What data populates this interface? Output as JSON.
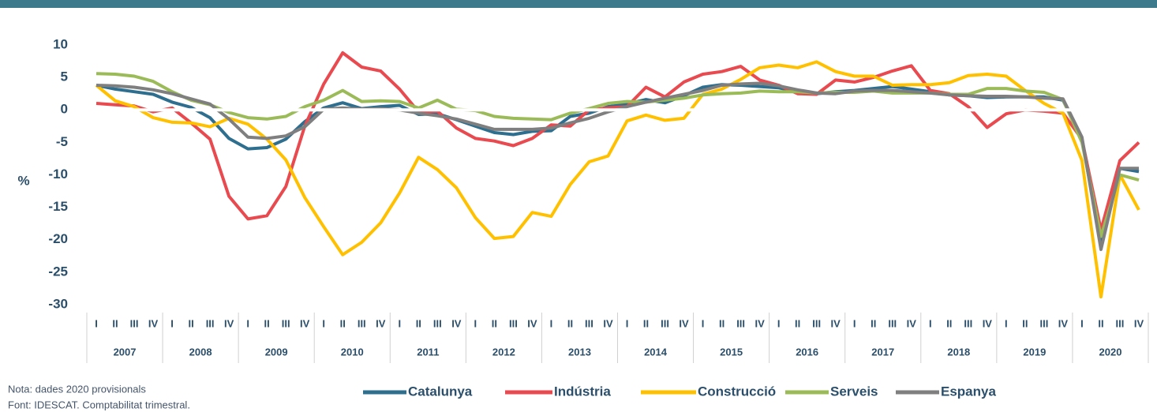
{
  "chart_data": {
    "type": "line",
    "y_label": "%",
    "categories": [
      "I",
      "II",
      "III",
      "IV",
      "I",
      "II",
      "III",
      "IV",
      "I",
      "II",
      "III",
      "IV",
      "I",
      "II",
      "III",
      "IV",
      "I",
      "II",
      "III",
      "IV",
      "I",
      "II",
      "III",
      "IV",
      "I",
      "II",
      "III",
      "IV",
      "I",
      "II",
      "III",
      "IV",
      "I",
      "II",
      "III",
      "IV",
      "I",
      "II",
      "III",
      "IV",
      "I",
      "II",
      "III",
      "IV",
      "I",
      "II",
      "III",
      "IV",
      "I",
      "II",
      "III",
      "IV",
      "I",
      "II",
      "III",
      "IV"
    ],
    "years": [
      "2007",
      "2008",
      "2009",
      "2010",
      "2011",
      "2012",
      "2013",
      "2014",
      "2015",
      "2016",
      "2017",
      "2018",
      "2019",
      "2020"
    ],
    "ylim": [
      -30,
      10
    ],
    "yticks": [
      10,
      5,
      0,
      -5,
      -10,
      -15,
      -20,
      -25,
      -30
    ],
    "zero_line": true,
    "series": [
      {
        "name": "Catalunya",
        "color": "#2e6e8e",
        "values": [
          3.8,
          3.2,
          2.8,
          2.4,
          1.2,
          0.4,
          -1.2,
          -4.4,
          -6.0,
          -5.8,
          -4.5,
          -1.8,
          0.3,
          1.1,
          0.2,
          0.5,
          0.7,
          -0.7,
          -0.6,
          -1.5,
          -2.5,
          -3.5,
          -3.8,
          -3.3,
          -3.2,
          -1.0,
          -0.5,
          0.5,
          0.9,
          1.6,
          1.1,
          2.2,
          3.5,
          3.9,
          3.8,
          3.6,
          3.4,
          2.8,
          2.5,
          2.8,
          3.0,
          3.3,
          3.6,
          3.2,
          2.8,
          2.3,
          2.2,
          1.9,
          2.0,
          2.0,
          2.0,
          1.5,
          -4.5,
          -20.5,
          -9.0,
          -9.5
        ]
      },
      {
        "name": "Indústria",
        "color": "#e84a4f",
        "values": [
          1.0,
          0.8,
          0.6,
          -0.3,
          0.3,
          -2.0,
          -4.5,
          -13.3,
          -16.8,
          -16.3,
          -11.8,
          -2.5,
          4.0,
          8.8,
          6.6,
          6.0,
          3.2,
          -0.3,
          -0.2,
          -2.8,
          -4.4,
          -4.8,
          -5.5,
          -4.4,
          -2.3,
          -2.5,
          0.0,
          0.3,
          0.5,
          3.5,
          2.0,
          4.3,
          5.5,
          5.9,
          6.7,
          4.6,
          3.8,
          2.5,
          2.4,
          4.6,
          4.3,
          5.0,
          6.0,
          6.8,
          3.0,
          2.5,
          0.5,
          -2.7,
          -0.6,
          0.0,
          -0.2,
          -0.5,
          -4.5,
          -18.5,
          -7.8,
          -5.0
        ]
      },
      {
        "name": "Construcció",
        "color": "#ffc000",
        "values": [
          3.8,
          1.4,
          0.5,
          -1.2,
          -1.9,
          -2.0,
          -2.6,
          -1.3,
          -2.2,
          -4.5,
          -7.7,
          -13.5,
          -18.0,
          -22.3,
          -20.4,
          -17.4,
          -12.8,
          -7.3,
          -9.2,
          -12.0,
          -16.6,
          -19.8,
          -19.5,
          -15.8,
          -16.4,
          -11.5,
          -8.0,
          -7.1,
          -1.7,
          -0.8,
          -1.6,
          -1.3,
          2.4,
          3.2,
          4.7,
          6.5,
          6.9,
          6.5,
          7.4,
          5.9,
          5.2,
          5.2,
          3.8,
          3.9,
          3.9,
          4.2,
          5.3,
          5.5,
          5.2,
          3.0,
          1.0,
          -0.5,
          -7.8,
          -28.8,
          -10.0,
          -15.4
        ]
      },
      {
        "name": "Serveis",
        "color": "#9bbb59",
        "values": [
          5.6,
          5.5,
          5.2,
          4.4,
          2.8,
          1.5,
          0.8,
          -0.4,
          -1.2,
          -1.4,
          -1.0,
          0.5,
          1.5,
          3.0,
          1.3,
          1.4,
          1.3,
          0.3,
          1.5,
          0.1,
          -0.1,
          -1.0,
          -1.3,
          -1.4,
          -1.5,
          -0.5,
          0.2,
          1.0,
          1.3,
          1.2,
          1.5,
          1.8,
          2.3,
          2.5,
          2.6,
          2.9,
          2.8,
          2.8,
          2.6,
          2.7,
          2.7,
          2.9,
          2.6,
          2.6,
          2.6,
          2.4,
          2.4,
          3.3,
          3.3,
          2.9,
          2.7,
          1.6,
          -5.0,
          -19.5,
          -10.0,
          -10.8
        ]
      },
      {
        "name": "Espanya",
        "color": "#7f7f7f",
        "values": [
          3.8,
          3.7,
          3.5,
          3.1,
          2.5,
          1.7,
          0.9,
          -1.4,
          -4.2,
          -4.4,
          -4.0,
          -2.6,
          0.1,
          0.3,
          0.1,
          0.2,
          0.0,
          -0.5,
          -0.9,
          -1.4,
          -2.2,
          -3.0,
          -3.0,
          -3.0,
          -2.8,
          -2.0,
          -1.3,
          -0.3,
          0.5,
          1.2,
          1.8,
          2.4,
          3.0,
          3.8,
          4.0,
          4.1,
          3.7,
          3.1,
          2.6,
          2.5,
          2.9,
          3.0,
          3.0,
          2.8,
          2.6,
          2.3,
          2.2,
          2.1,
          2.1,
          2.0,
          1.8,
          1.7,
          -4.2,
          -21.5,
          -9.0,
          -9.0
        ]
      }
    ]
  },
  "notes": [
    "Nota: dades 2020 provisionals",
    "Font: IDESCAT. Comptabilitat trimestral."
  ]
}
